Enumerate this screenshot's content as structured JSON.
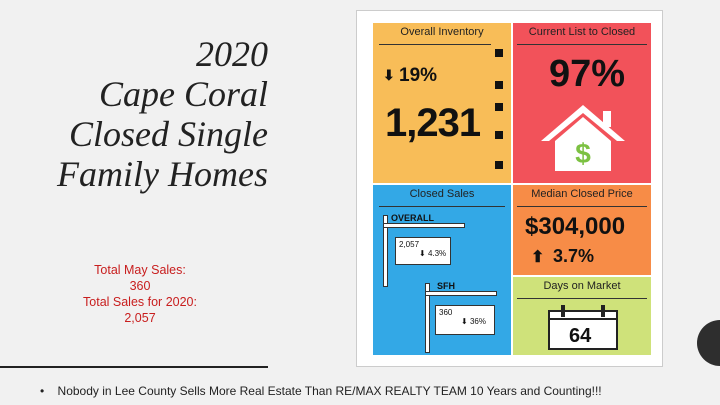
{
  "title": {
    "line1": "2020",
    "line2": "Cape Coral",
    "line3": "Closed Single",
    "line4": "Family Homes"
  },
  "sales": {
    "may_label": "Total May Sales:",
    "may_value": "360",
    "year_label": "Total Sales for 2020:",
    "year_value": "2,057"
  },
  "footer": {
    "bullet": "•",
    "text": "Nobody in Lee County Sells More Real Estate Than RE/MAX REALTY TEAM  10 Years and Counting!!!"
  },
  "tiles": {
    "inventory": {
      "heading": "Overall Inventory",
      "change": "19%",
      "value": "1,231",
      "arrow": "down-arrow"
    },
    "list_to_closed": {
      "heading": "Current List to Closed",
      "value": "97%",
      "icon": "house-dollar-icon"
    },
    "closed_sales": {
      "heading": "Closed Sales",
      "overall_label": "OVERALL",
      "overall_value": "2,057",
      "overall_change": "4.3%",
      "sfh_label": "SFH",
      "sfh_value": "360",
      "sfh_change": "36%"
    },
    "median_price": {
      "heading": "Median Closed Price",
      "value": "$304,000",
      "change": "3.7%",
      "arrow": "up-arrow"
    },
    "days_on_market": {
      "heading": "Days on Market",
      "value": "64",
      "icon": "calendar-icon"
    }
  },
  "colors": {
    "inventory": "#f8bd58",
    "list_to_closed": "#f2525a",
    "closed_sales": "#33a8e6",
    "median_price": "#f78c47",
    "days_on_market": "#cfe27a",
    "sales_text": "#c81e1e"
  }
}
